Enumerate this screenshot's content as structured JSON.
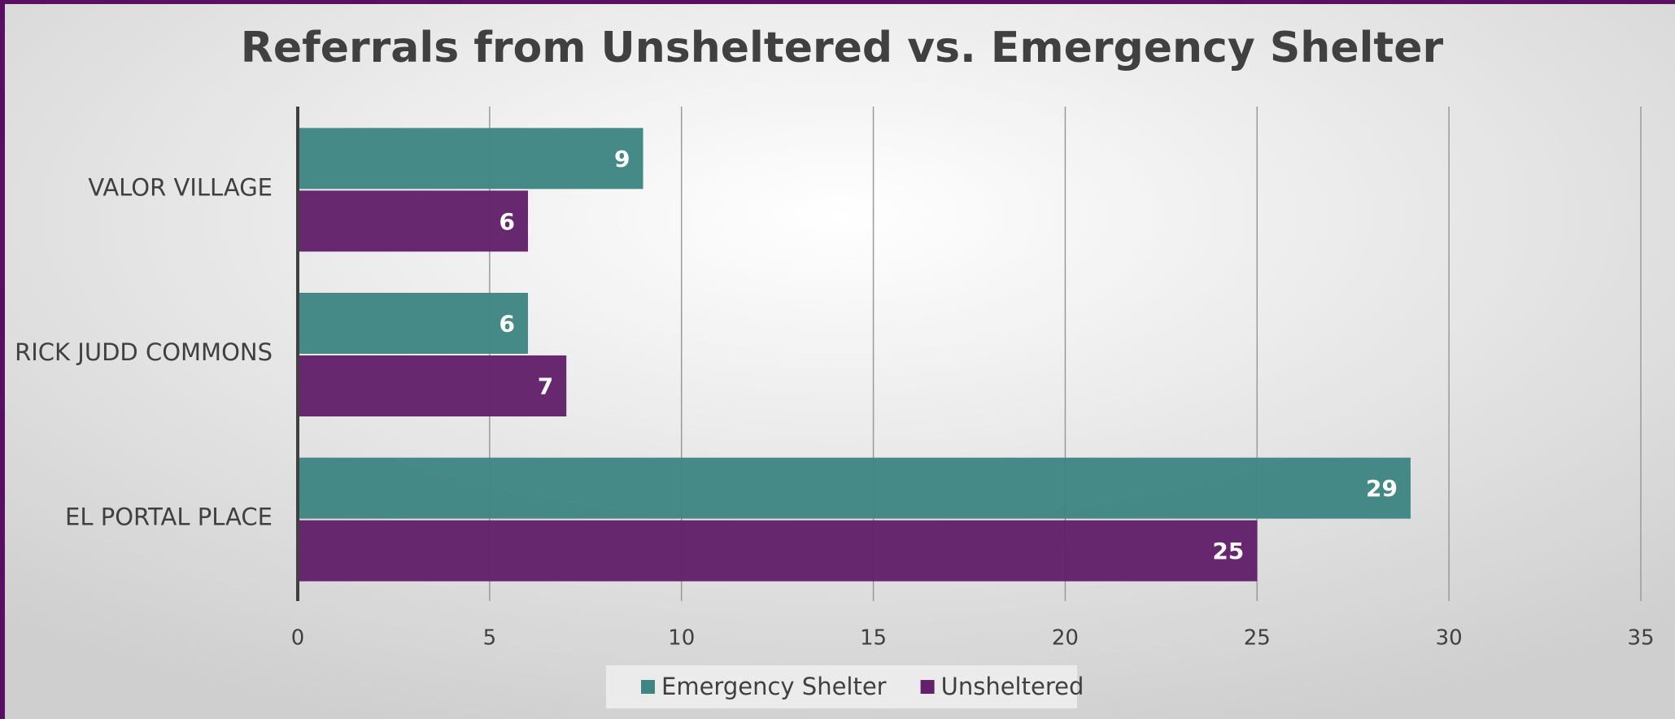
{
  "chart_data": {
    "type": "bar",
    "orientation": "horizontal",
    "title": "Referrals from Unsheltered vs. Emergency Shelter",
    "categories": [
      "VALOR VILLAGE",
      "RICK JUDD COMMONS",
      "EL PORTAL PLACE"
    ],
    "series": [
      {
        "name": "Emergency Shelter",
        "color": "#3f8683",
        "values": [
          9,
          6,
          29
        ]
      },
      {
        "name": "Unsheltered",
        "color": "#62216a",
        "values": [
          6,
          7,
          25
        ]
      }
    ],
    "xlim": [
      0,
      35
    ],
    "xticks": [
      0,
      5,
      10,
      15,
      20,
      25,
      30,
      35
    ],
    "grid": true,
    "legend": "bottom"
  }
}
